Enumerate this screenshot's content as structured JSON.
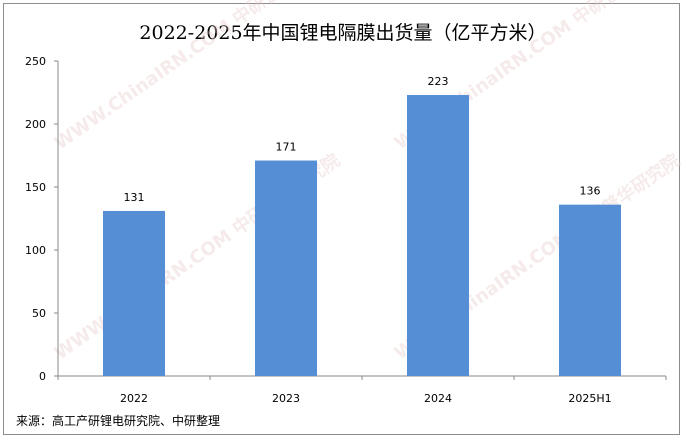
{
  "chart_data": {
    "type": "bar",
    "title": "2022-2025年中国锂电隔膜出货量（亿平方米）",
    "categories": [
      "2022",
      "2023",
      "2024",
      "2025H1"
    ],
    "values": [
      131,
      171,
      223,
      136
    ],
    "ylim": [
      0,
      250
    ],
    "yticks": [
      0,
      50,
      100,
      150,
      200,
      250
    ],
    "xlabel": "",
    "ylabel": "",
    "grid": false,
    "legend": "none",
    "bar_color": "#558ed5",
    "data_labels": true
  },
  "source": "来源：高工产研锂电研究院、中研整理",
  "watermark": "WWW.ChinaIRN.COM 中研普华研究院"
}
